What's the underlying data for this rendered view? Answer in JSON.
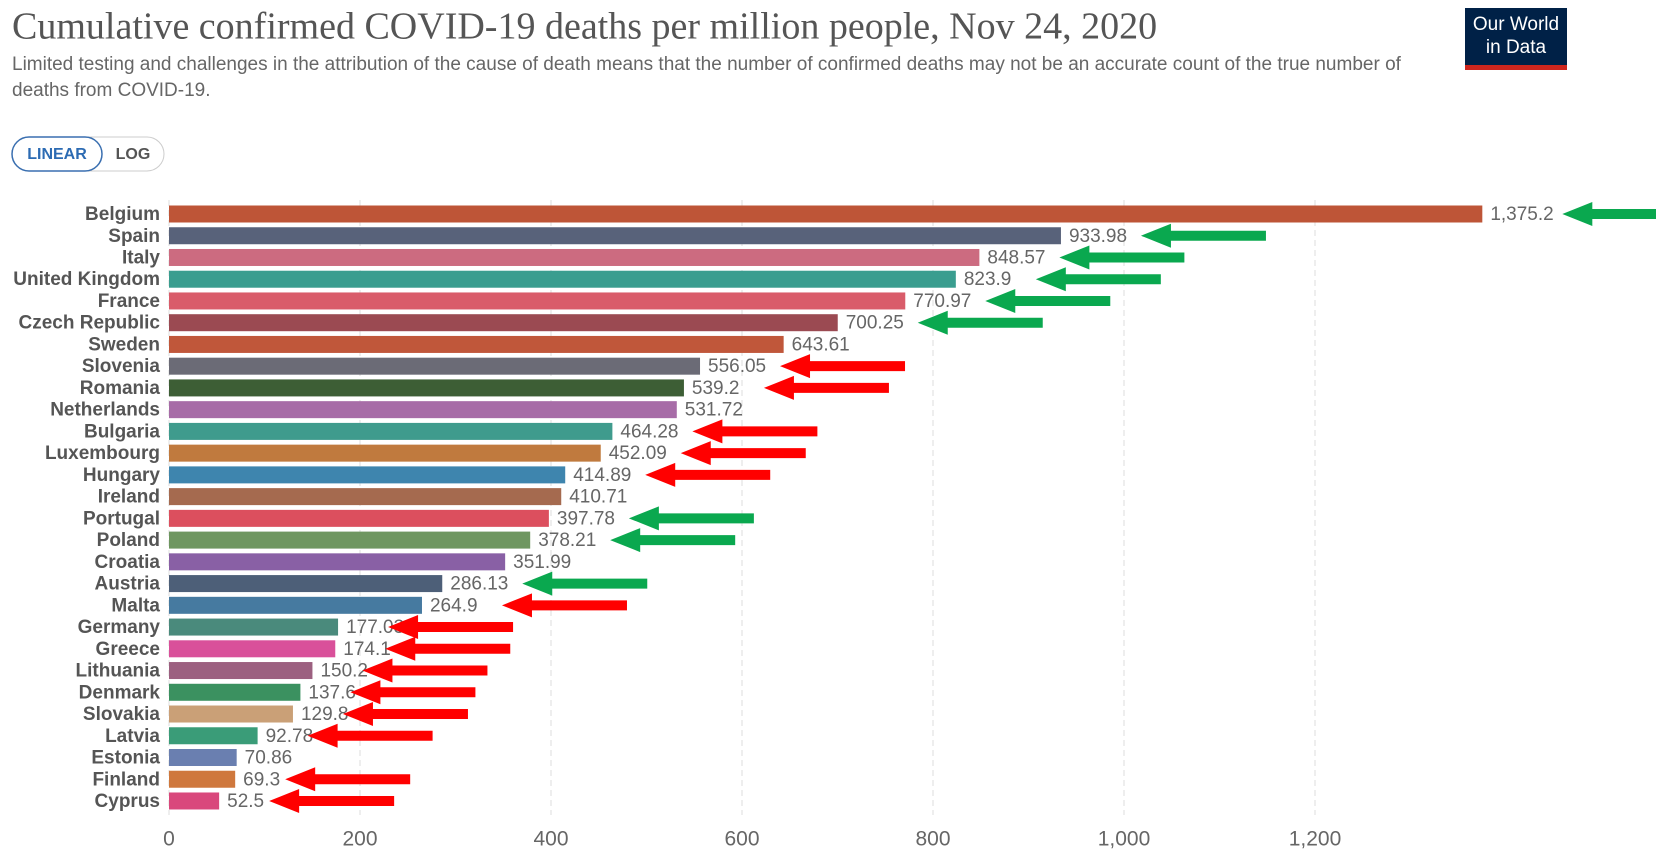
{
  "chart_data": {
    "type": "hbar",
    "title": "Cumulative confirmed COVID-19 deaths per million people, Nov 24, 2020",
    "subtitle": "Limited testing and challenges in the attribution of the cause of death means that the number of confirmed deaths may not be an accurate count of the true number of deaths from COVID-19.",
    "categories": [
      "Belgium",
      "Spain",
      "Italy",
      "United Kingdom",
      "France",
      "Czech Republic",
      "Sweden",
      "Slovenia",
      "Romania",
      "Netherlands",
      "Bulgaria",
      "Luxembourg",
      "Hungary",
      "Ireland",
      "Portugal",
      "Poland",
      "Croatia",
      "Austria",
      "Malta",
      "Germany",
      "Greece",
      "Lithuania",
      "Denmark",
      "Slovakia",
      "Latvia",
      "Estonia",
      "Finland",
      "Cyprus"
    ],
    "values": [
      1375.2,
      933.98,
      848.57,
      823.9,
      770.97,
      700.25,
      643.61,
      556.05,
      539.2,
      531.72,
      464.28,
      452.09,
      414.89,
      410.71,
      397.78,
      378.21,
      351.99,
      286.13,
      264.9,
      177.03,
      174.1,
      150.2,
      137.6,
      129.8,
      92.78,
      70.86,
      69.3,
      52.5
    ],
    "value_labels": [
      "1,375.2",
      "933.98",
      "848.57",
      "823.9",
      "770.97",
      "700.25",
      "643.61",
      "556.05",
      "539.2",
      "531.72",
      "464.28",
      "452.09",
      "414.89",
      "410.71",
      "397.78",
      "378.21",
      "351.99",
      "286.13",
      "264.9",
      "177.03",
      "174.1",
      "150.2",
      "137.6",
      "129.8",
      "92.78",
      "70.86",
      "69.3",
      "52.5"
    ],
    "colors": [
      "#be5537",
      "#58627a",
      "#cc6b80",
      "#3a9d8f",
      "#d95c6a",
      "#9b4a52",
      "#c0573a",
      "#6b6b76",
      "#3d5e35",
      "#a76ca7",
      "#3f9b8d",
      "#c07a3e",
      "#3e85ae",
      "#a56a4f",
      "#dc4f5e",
      "#6e9660",
      "#8960a5",
      "#4d5f78",
      "#467aa0",
      "#4a8a7c",
      "#d9509a",
      "#9c6080",
      "#3b9160",
      "#caa077",
      "#3a9c78",
      "#6a7fb0",
      "#cf783d",
      "#d9487c"
    ],
    "xlim": [
      0,
      1400
    ],
    "xticks": [
      0,
      200,
      400,
      600,
      800,
      {
        "value": 1000,
        "label": "1,000"
      },
      {
        "value": 1200,
        "label": "1,200"
      }
    ],
    "grid": true
  },
  "buttons": [
    "LINEAR",
    "LOG"
  ],
  "logo": [
    "Our World",
    "in Data"
  ]
}
